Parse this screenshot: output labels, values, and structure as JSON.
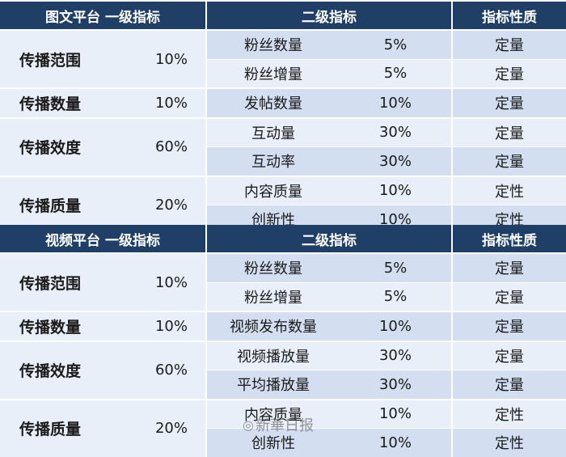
{
  "sections": [
    {
      "headers": {
        "level1": "图文平台  一级指标",
        "level2": "二级指标",
        "nature": "指标性质"
      },
      "groups": [
        {
          "name": "传播范围",
          "weight": "10%",
          "rows": [
            {
              "indicator": "粉丝数量",
              "weight": "5%",
              "nature": "定量"
            },
            {
              "indicator": "粉丝增量",
              "weight": "5%",
              "nature": "定量"
            }
          ]
        },
        {
          "name": "传播数量",
          "weight": "10%",
          "rows": [
            {
              "indicator": "发帖数量",
              "weight": "10%",
              "nature": "定量"
            }
          ]
        },
        {
          "name": "传播效度",
          "weight": "60%",
          "rows": [
            {
              "indicator": "互动量",
              "weight": "30%",
              "nature": "定量"
            },
            {
              "indicator": "互动率",
              "weight": "30%",
              "nature": "定量"
            }
          ]
        },
        {
          "name": "传播质量",
          "weight": "20%",
          "rows": [
            {
              "indicator": "内容质量",
              "weight": "10%",
              "nature": "定性"
            },
            {
              "indicator": "创新性",
              "weight": "10%",
              "nature": "定性"
            }
          ]
        }
      ]
    },
    {
      "headers": {
        "level1": "视频平台  一级指标",
        "level2": "二级指标",
        "nature": "指标性质"
      },
      "groups": [
        {
          "name": "传播范围",
          "weight": "10%",
          "rows": [
            {
              "indicator": "粉丝数量",
              "weight": "5%",
              "nature": "定量"
            },
            {
              "indicator": "粉丝增量",
              "weight": "5%",
              "nature": "定量"
            }
          ]
        },
        {
          "name": "传播数量",
          "weight": "10%",
          "rows": [
            {
              "indicator": "视频发布数量",
              "weight": "10%",
              "nature": "定量"
            }
          ]
        },
        {
          "name": "传播效度",
          "weight": "60%",
          "rows": [
            {
              "indicator": "视频播放量",
              "weight": "30%",
              "nature": "定量"
            },
            {
              "indicator": "平均播放量",
              "weight": "30%",
              "nature": "定量"
            }
          ]
        },
        {
          "name": "传播质量",
          "weight": "20%",
          "rows": [
            {
              "indicator": "内容质量",
              "weight": "10%",
              "nature": "定性"
            },
            {
              "indicator": "创新性",
              "weight": "10%",
              "nature": "定性"
            }
          ]
        }
      ]
    }
  ],
  "watermark": {
    "text": "新華日报",
    "icon": "weibo-icon"
  }
}
